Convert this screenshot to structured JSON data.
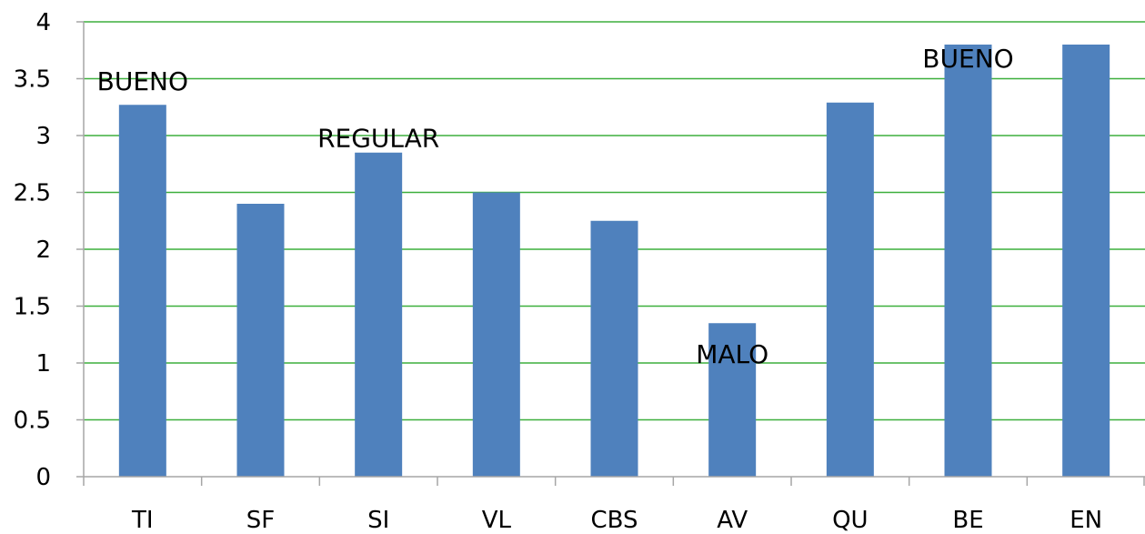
{
  "chart_data": {
    "type": "bar",
    "categories": [
      "TI",
      "SF",
      "SI",
      "VL",
      "CBS",
      "AV",
      "QU",
      "BE",
      "EN"
    ],
    "values": [
      3.27,
      2.4,
      2.85,
      2.5,
      2.25,
      1.35,
      3.29,
      3.8,
      3.8
    ],
    "title": "",
    "xlabel": "",
    "ylabel": "",
    "ylim": [
      0,
      4
    ],
    "yticks": [
      "0",
      "0.5",
      "1",
      "1.5",
      "2",
      "2.5",
      "3",
      "3.5",
      "4"
    ],
    "grid": true,
    "legend": "none",
    "annotations": [
      {
        "text": "BUENO",
        "category": "TI",
        "y": 3.4
      },
      {
        "text": "REGULAR",
        "category": "SI",
        "y": 2.9
      },
      {
        "text": "MALO",
        "category": "AV",
        "y": 1.0
      },
      {
        "text": "BUENO",
        "category": "BE",
        "y": 3.6
      }
    ],
    "colors": {
      "bar": "#4f81bd",
      "grid": "#3daf3d",
      "axis": "#a6a6a6",
      "text": "#000000"
    }
  }
}
